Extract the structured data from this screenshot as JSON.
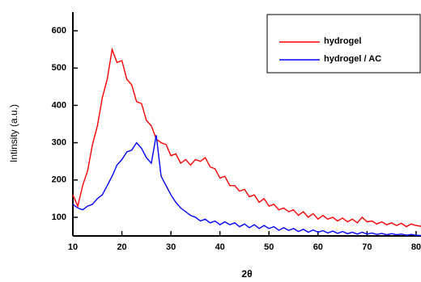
{
  "chart_data": {
    "type": "line",
    "x_label": "2θ",
    "y_label": "Intinsity (a.u.)",
    "x": [
      10,
      11,
      12,
      13,
      14,
      15,
      16,
      17,
      18,
      19,
      20,
      21,
      22,
      23,
      24,
      25,
      26,
      27,
      28,
      29,
      30,
      31,
      32,
      33,
      34,
      35,
      36,
      37,
      38,
      39,
      40,
      41,
      42,
      43,
      44,
      45,
      46,
      47,
      48,
      49,
      50,
      51,
      52,
      53,
      54,
      55,
      56,
      57,
      58,
      59,
      60,
      61,
      62,
      63,
      64,
      65,
      66,
      67,
      68,
      69,
      70,
      71,
      72,
      73,
      74,
      75,
      76,
      77,
      78,
      79,
      80,
      81
    ],
    "series": [
      {
        "name": "hydrogel",
        "color": "#ff0000",
        "values": [
          160,
          130,
          185,
          225,
          295,
          345,
          420,
          470,
          550,
          515,
          520,
          470,
          455,
          410,
          405,
          360,
          345,
          310,
          300,
          295,
          265,
          270,
          245,
          255,
          240,
          255,
          250,
          260,
          235,
          230,
          205,
          210,
          185,
          185,
          170,
          175,
          155,
          160,
          140,
          150,
          130,
          135,
          120,
          125,
          115,
          120,
          105,
          115,
          100,
          110,
          95,
          105,
          95,
          100,
          90,
          98,
          88,
          95,
          85,
          100,
          88,
          90,
          82,
          88,
          80,
          85,
          78,
          84,
          75,
          82,
          78,
          76
        ]
      },
      {
        "name": "hydrogel / AC",
        "color": "#0000ff",
        "values": [
          135,
          125,
          120,
          130,
          135,
          150,
          160,
          185,
          210,
          240,
          255,
          275,
          280,
          300,
          285,
          260,
          245,
          320,
          210,
          185,
          160,
          140,
          125,
          115,
          105,
          100,
          90,
          95,
          85,
          90,
          80,
          88,
          80,
          85,
          75,
          82,
          72,
          80,
          70,
          78,
          70,
          75,
          65,
          72,
          65,
          70,
          62,
          68,
          60,
          66,
          60,
          64,
          58,
          63,
          57,
          62,
          56,
          60,
          55,
          60,
          55,
          58,
          54,
          57,
          53,
          56,
          53,
          55,
          52,
          54,
          52,
          51
        ]
      }
    ],
    "xlim": [
      10,
      81
    ],
    "ylim": [
      50,
      650
    ],
    "xticks": [
      10,
      20,
      30,
      40,
      50,
      60,
      70,
      80
    ],
    "yticks": [
      100,
      200,
      300,
      400,
      500,
      600
    ],
    "legend": "top-right"
  }
}
